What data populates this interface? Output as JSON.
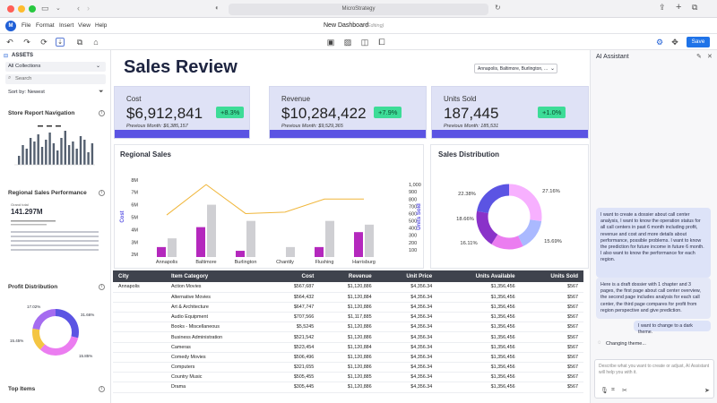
{
  "window": {
    "title": "MicroStrategy",
    "dashboard_title": "New Dashboard",
    "editing_label": "(Editing)"
  },
  "menu": [
    "File",
    "Format",
    "Insert",
    "View",
    "Help"
  ],
  "toolbar": {
    "save_label": "Save"
  },
  "left_panel": {
    "title": "ASSETS",
    "collection_select": "All Collections",
    "search_placeholder": "Search",
    "sort_label": "Sort by: Newest",
    "items": [
      {
        "title": "Store Report Navigation"
      },
      {
        "title": "Regional Sales Performance",
        "thumb_value": "141.297M",
        "thumb_label": "Grand total"
      },
      {
        "title": "Profit Distribution",
        "labels": [
          "17.02%",
          "31.66%",
          "15.45%",
          "15.85%"
        ]
      },
      {
        "title": "Top Items"
      }
    ]
  },
  "dashboard": {
    "title": "Sales Review",
    "filter": "Annapolis, Baltimore, Burlington, ...",
    "kpis": [
      {
        "label": "Cost",
        "value": "$6,912,841",
        "change": "+8.3%",
        "previous": "Previous Month: $6,385,157"
      },
      {
        "label": "Revenue",
        "value": "$10,284,422",
        "change": "+7.9%",
        "previous": "Previous Month: $9,529,365"
      },
      {
        "label": "Units Sold",
        "value": "187,445",
        "change": "+1.0%",
        "previous": "Previous Month: 185,531"
      }
    ],
    "regional_title": "Regional Sales",
    "distribution_title": "Sales Distribution",
    "table": {
      "headers": [
        "City",
        "Item Category",
        "Cost",
        "Revenue",
        "Unit Price",
        "Units Available",
        "Units Sold"
      ],
      "rows": [
        [
          "Annapolis",
          "Action Movies",
          "$567,687",
          "$1,120,886",
          "$4,356.34",
          "$1,356,456",
          "$567"
        ],
        [
          "",
          "Alternative Movies",
          "$564,432",
          "$1,120,884",
          "$4,356.34",
          "$1,356,456",
          "$567"
        ],
        [
          "",
          "Art & Architecture",
          "$647,747",
          "$1,120,886",
          "$4,356.34",
          "$1,356,456",
          "$567"
        ],
        [
          "",
          "Audio Equipment",
          "$707,566",
          "$1,117,885",
          "$4,356.34",
          "$1,356,456",
          "$567"
        ],
        [
          "",
          "Books - Miscellaneous",
          "$5,5245",
          "$1,120,886",
          "$4,356.34",
          "$1,356,456",
          "$567"
        ],
        [
          "",
          "Business Administration",
          "$521,542",
          "$1,120,886",
          "$4,356.34",
          "$1,356,456",
          "$567"
        ],
        [
          "",
          "Cameras",
          "$523,454",
          "$1,120,884",
          "$4,356.34",
          "$1,356,456",
          "$567"
        ],
        [
          "",
          "Comedy Movies",
          "$506,496",
          "$1,120,886",
          "$4,356.34",
          "$1,356,456",
          "$567"
        ],
        [
          "",
          "Computers",
          "$321,655",
          "$1,120,886",
          "$4,356.34",
          "$1,356,456",
          "$567"
        ],
        [
          "",
          "Country Music",
          "$505,455",
          "$1,120,885",
          "$4,356.34",
          "$1,356,456",
          "$567"
        ],
        [
          "",
          "Drama",
          "$305,445",
          "$1,120,886",
          "$4,356.34",
          "$1,356,456",
          "$567"
        ]
      ]
    }
  },
  "chart_data": [
    {
      "type": "bar",
      "title": "Regional Sales",
      "categories": [
        "Annapolis",
        "Baltimore",
        "Burlington",
        "Chantily",
        "Flushing",
        "Harrisburg"
      ],
      "series": [
        {
          "values": [
            2.6,
            4.2,
            2.3,
            1.8,
            2.6,
            3.8
          ]
        },
        {
          "values": [
            3.3,
            6.0,
            4.7,
            2.6,
            4.7,
            4.4
          ]
        },
        {
          "values": [
            580,
            1000,
            600,
            620,
            800,
            800
          ]
        }
      ],
      "ylabel": "Cost",
      "y2label": "Units Sold",
      "y_ticks": [
        "2M",
        "3M",
        "4M",
        "5M",
        "6M",
        "7M",
        "8M"
      ],
      "y2_ticks": [
        "100",
        "200",
        "300",
        "400",
        "500",
        "600",
        "700",
        "800",
        "900",
        "1,000"
      ],
      "colors": [
        "#b428bd",
        "#cfcfd3",
        "#f0b63a"
      ]
    },
    {
      "type": "pie",
      "title": "Sales Distribution",
      "labels": [
        "27.16%",
        "15.69%",
        "16.11%",
        "18.66%",
        "22.38%"
      ],
      "values": [
        27.16,
        15.69,
        16.11,
        18.66,
        22.38
      ],
      "colors": [
        "#f7b0ff",
        "#aab9ff",
        "#eb7df0",
        "#8a32c9",
        "#5b54e3"
      ]
    }
  ],
  "assistant": {
    "title": "AI Assistant",
    "messages": [
      {
        "role": "user",
        "text": "I want to create a dossier about call center analysis, I want to know the operation status for all call centers in past 6 month including profit, revenue and cost and more details about performance, possible problems. I want to know the prediction for future income in future 6 month. I also want to know the performance for each region."
      },
      {
        "role": "assistant",
        "text": "Here is a draft dossier with 1 chapter and 3 pages, the first page about call center overview, the second page includes analysis for each call center, the third page compares for profit from region perspective and give prediction."
      },
      {
        "role": "user",
        "text": "I want to change to a dark theme."
      }
    ],
    "status": "Changing theme...",
    "input_placeholder": "Describe what you want to create or adjust, AI Assistant will help you with it."
  }
}
